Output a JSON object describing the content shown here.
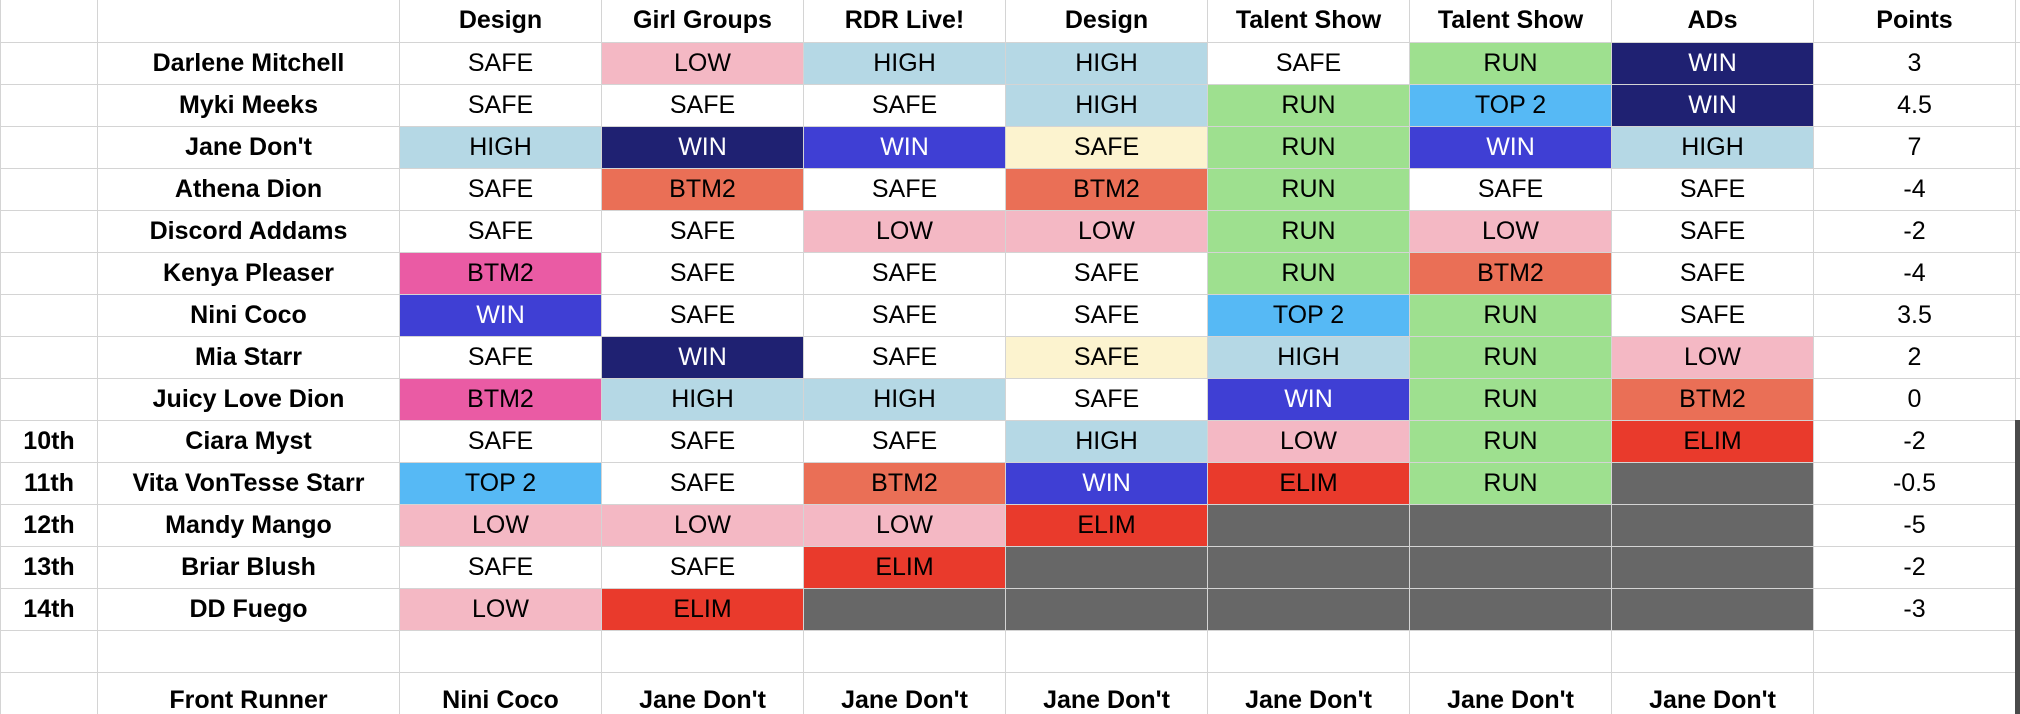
{
  "columns": {
    "rank": "",
    "name": "",
    "episodes": [
      "Design",
      "Girl Groups",
      "RDR Live!",
      "Design",
      "Talent Show",
      "Talent Show",
      "ADs"
    ],
    "points": "Points"
  },
  "status_colors": {
    "SAFE": "#ffffff",
    "LOW": "#f4b8c4",
    "HIGH": "#b5d8e5",
    "WIN": "#3f3fd4",
    "WIN_DARK": "#1f2172",
    "RUN": "#9ee08f",
    "TOP 2": "#56b9f5",
    "BTM2": "#ea6f56",
    "BTM2_PINK": "#ea5ba4",
    "ELIM": "#e93a2c",
    "SAFE_CREAM": "#fcf3cf",
    "ELIMINATED_GREY": "#676767"
  },
  "queens": [
    {
      "rank": "",
      "name": "Darlene Mitchell",
      "points": "3",
      "results": [
        {
          "text": "SAFE",
          "bg": "#ffffff",
          "fg": "#000000"
        },
        {
          "text": "LOW",
          "bg": "#f4b8c4",
          "fg": "#000000"
        },
        {
          "text": "HIGH",
          "bg": "#b5d8e5",
          "fg": "#000000"
        },
        {
          "text": "HIGH",
          "bg": "#b5d8e5",
          "fg": "#000000"
        },
        {
          "text": "SAFE",
          "bg": "#ffffff",
          "fg": "#000000"
        },
        {
          "text": "RUN",
          "bg": "#9ee08f",
          "fg": "#000000"
        },
        {
          "text": "WIN",
          "bg": "#1f2172",
          "fg": "#ffffff"
        }
      ]
    },
    {
      "rank": "",
      "name": "Myki Meeks",
      "points": "4.5",
      "results": [
        {
          "text": "SAFE",
          "bg": "#ffffff",
          "fg": "#000000"
        },
        {
          "text": "SAFE",
          "bg": "#ffffff",
          "fg": "#000000"
        },
        {
          "text": "SAFE",
          "bg": "#ffffff",
          "fg": "#000000"
        },
        {
          "text": "HIGH",
          "bg": "#b5d8e5",
          "fg": "#000000"
        },
        {
          "text": "RUN",
          "bg": "#9ee08f",
          "fg": "#000000"
        },
        {
          "text": "TOP 2",
          "bg": "#56b9f5",
          "fg": "#000000"
        },
        {
          "text": "WIN",
          "bg": "#1f2172",
          "fg": "#ffffff"
        }
      ]
    },
    {
      "rank": "",
      "name": "Jane Don't",
      "points": "7",
      "results": [
        {
          "text": "HIGH",
          "bg": "#b5d8e5",
          "fg": "#000000"
        },
        {
          "text": "WIN",
          "bg": "#1f2172",
          "fg": "#ffffff"
        },
        {
          "text": "WIN",
          "bg": "#3f3fd4",
          "fg": "#ffffff"
        },
        {
          "text": "SAFE",
          "bg": "#fcf3cf",
          "fg": "#000000"
        },
        {
          "text": "RUN",
          "bg": "#9ee08f",
          "fg": "#000000"
        },
        {
          "text": "WIN",
          "bg": "#3f3fd4",
          "fg": "#ffffff"
        },
        {
          "text": "HIGH",
          "bg": "#b5d8e5",
          "fg": "#000000"
        }
      ]
    },
    {
      "rank": "",
      "name": "Athena Dion",
      "points": "-4",
      "results": [
        {
          "text": "SAFE",
          "bg": "#ffffff",
          "fg": "#000000"
        },
        {
          "text": "BTM2",
          "bg": "#ea6f56",
          "fg": "#000000"
        },
        {
          "text": "SAFE",
          "bg": "#ffffff",
          "fg": "#000000"
        },
        {
          "text": "BTM2",
          "bg": "#ea6f56",
          "fg": "#000000"
        },
        {
          "text": "RUN",
          "bg": "#9ee08f",
          "fg": "#000000"
        },
        {
          "text": "SAFE",
          "bg": "#ffffff",
          "fg": "#000000"
        },
        {
          "text": "SAFE",
          "bg": "#ffffff",
          "fg": "#000000"
        }
      ]
    },
    {
      "rank": "",
      "name": "Discord Addams",
      "points": "-2",
      "results": [
        {
          "text": "SAFE",
          "bg": "#ffffff",
          "fg": "#000000"
        },
        {
          "text": "SAFE",
          "bg": "#ffffff",
          "fg": "#000000"
        },
        {
          "text": "LOW",
          "bg": "#f4b8c4",
          "fg": "#000000"
        },
        {
          "text": "LOW",
          "bg": "#f4b8c4",
          "fg": "#000000"
        },
        {
          "text": "RUN",
          "bg": "#9ee08f",
          "fg": "#000000"
        },
        {
          "text": "LOW",
          "bg": "#f4b8c4",
          "fg": "#000000"
        },
        {
          "text": "SAFE",
          "bg": "#ffffff",
          "fg": "#000000"
        }
      ]
    },
    {
      "rank": "",
      "name": "Kenya Pleaser",
      "points": "-4",
      "results": [
        {
          "text": "BTM2",
          "bg": "#ea5ba4",
          "fg": "#000000"
        },
        {
          "text": "SAFE",
          "bg": "#ffffff",
          "fg": "#000000"
        },
        {
          "text": "SAFE",
          "bg": "#ffffff",
          "fg": "#000000"
        },
        {
          "text": "SAFE",
          "bg": "#ffffff",
          "fg": "#000000"
        },
        {
          "text": "RUN",
          "bg": "#9ee08f",
          "fg": "#000000"
        },
        {
          "text": "BTM2",
          "bg": "#ea6f56",
          "fg": "#000000"
        },
        {
          "text": "SAFE",
          "bg": "#ffffff",
          "fg": "#000000"
        }
      ]
    },
    {
      "rank": "",
      "name": "Nini Coco",
      "points": "3.5",
      "results": [
        {
          "text": "WIN",
          "bg": "#3f3fd4",
          "fg": "#ffffff"
        },
        {
          "text": "SAFE",
          "bg": "#ffffff",
          "fg": "#000000"
        },
        {
          "text": "SAFE",
          "bg": "#ffffff",
          "fg": "#000000"
        },
        {
          "text": "SAFE",
          "bg": "#ffffff",
          "fg": "#000000"
        },
        {
          "text": "TOP 2",
          "bg": "#56b9f5",
          "fg": "#000000"
        },
        {
          "text": "RUN",
          "bg": "#9ee08f",
          "fg": "#000000"
        },
        {
          "text": "SAFE",
          "bg": "#ffffff",
          "fg": "#000000"
        }
      ]
    },
    {
      "rank": "",
      "name": "Mia Starr",
      "points": "2",
      "results": [
        {
          "text": "SAFE",
          "bg": "#ffffff",
          "fg": "#000000"
        },
        {
          "text": "WIN",
          "bg": "#1f2172",
          "fg": "#ffffff"
        },
        {
          "text": "SAFE",
          "bg": "#ffffff",
          "fg": "#000000"
        },
        {
          "text": "SAFE",
          "bg": "#fcf3cf",
          "fg": "#000000"
        },
        {
          "text": "HIGH",
          "bg": "#b5d8e5",
          "fg": "#000000"
        },
        {
          "text": "RUN",
          "bg": "#9ee08f",
          "fg": "#000000"
        },
        {
          "text": "LOW",
          "bg": "#f4b8c4",
          "fg": "#000000"
        }
      ]
    },
    {
      "rank": "",
      "name": "Juicy Love Dion",
      "points": "0",
      "results": [
        {
          "text": "BTM2",
          "bg": "#ea5ba4",
          "fg": "#000000"
        },
        {
          "text": "HIGH",
          "bg": "#b5d8e5",
          "fg": "#000000"
        },
        {
          "text": "HIGH",
          "bg": "#b5d8e5",
          "fg": "#000000"
        },
        {
          "text": "SAFE",
          "bg": "#ffffff",
          "fg": "#000000"
        },
        {
          "text": "WIN",
          "bg": "#3f3fd4",
          "fg": "#ffffff"
        },
        {
          "text": "RUN",
          "bg": "#9ee08f",
          "fg": "#000000"
        },
        {
          "text": "BTM2",
          "bg": "#ea6f56",
          "fg": "#000000"
        }
      ]
    },
    {
      "rank": "10th",
      "name": "Ciara Myst",
      "points": "-2",
      "results": [
        {
          "text": "SAFE",
          "bg": "#ffffff",
          "fg": "#000000"
        },
        {
          "text": "SAFE",
          "bg": "#ffffff",
          "fg": "#000000"
        },
        {
          "text": "SAFE",
          "bg": "#ffffff",
          "fg": "#000000"
        },
        {
          "text": "HIGH",
          "bg": "#b5d8e5",
          "fg": "#000000"
        },
        {
          "text": "LOW",
          "bg": "#f4b8c4",
          "fg": "#000000"
        },
        {
          "text": "RUN",
          "bg": "#9ee08f",
          "fg": "#000000"
        },
        {
          "text": "ELIM",
          "bg": "#e93a2c",
          "fg": "#000000"
        }
      ]
    },
    {
      "rank": "11th",
      "name": "Vita VonTesse Starr",
      "points": "-0.5",
      "results": [
        {
          "text": "TOP 2",
          "bg": "#56b9f5",
          "fg": "#000000"
        },
        {
          "text": "SAFE",
          "bg": "#ffffff",
          "fg": "#000000"
        },
        {
          "text": "BTM2",
          "bg": "#ea6f56",
          "fg": "#000000"
        },
        {
          "text": "WIN",
          "bg": "#3f3fd4",
          "fg": "#ffffff"
        },
        {
          "text": "ELIM",
          "bg": "#e93a2c",
          "fg": "#000000"
        },
        {
          "text": "RUN",
          "bg": "#9ee08f",
          "fg": "#000000"
        },
        {
          "text": "",
          "bg": "#676767",
          "fg": "#000000"
        }
      ]
    },
    {
      "rank": "12th",
      "name": "Mandy Mango",
      "points": "-5",
      "results": [
        {
          "text": "LOW",
          "bg": "#f4b8c4",
          "fg": "#000000"
        },
        {
          "text": "LOW",
          "bg": "#f4b8c4",
          "fg": "#000000"
        },
        {
          "text": "LOW",
          "bg": "#f4b8c4",
          "fg": "#000000"
        },
        {
          "text": "ELIM",
          "bg": "#e93a2c",
          "fg": "#000000"
        },
        {
          "text": "",
          "bg": "#676767",
          "fg": "#000000"
        },
        {
          "text": "",
          "bg": "#676767",
          "fg": "#000000"
        },
        {
          "text": "",
          "bg": "#676767",
          "fg": "#000000"
        }
      ]
    },
    {
      "rank": "13th",
      "name": "Briar Blush",
      "points": "-2",
      "results": [
        {
          "text": "SAFE",
          "bg": "#ffffff",
          "fg": "#000000"
        },
        {
          "text": "SAFE",
          "bg": "#ffffff",
          "fg": "#000000"
        },
        {
          "text": "ELIM",
          "bg": "#e93a2c",
          "fg": "#000000"
        },
        {
          "text": "",
          "bg": "#676767",
          "fg": "#000000"
        },
        {
          "text": "",
          "bg": "#676767",
          "fg": "#000000"
        },
        {
          "text": "",
          "bg": "#676767",
          "fg": "#000000"
        },
        {
          "text": "",
          "bg": "#676767",
          "fg": "#000000"
        }
      ]
    },
    {
      "rank": "14th",
      "name": "DD Fuego",
      "points": "-3",
      "results": [
        {
          "text": "LOW",
          "bg": "#f4b8c4",
          "fg": "#000000"
        },
        {
          "text": "ELIM",
          "bg": "#e93a2c",
          "fg": "#000000"
        },
        {
          "text": "",
          "bg": "#676767",
          "fg": "#000000"
        },
        {
          "text": "",
          "bg": "#676767",
          "fg": "#000000"
        },
        {
          "text": "",
          "bg": "#676767",
          "fg": "#000000"
        },
        {
          "text": "",
          "bg": "#676767",
          "fg": "#000000"
        },
        {
          "text": "",
          "bg": "#676767",
          "fg": "#000000"
        }
      ]
    }
  ],
  "front_runner": {
    "label": "Front Runner",
    "values": [
      "Nini Coco",
      "Jane Don't",
      "Jane Don't",
      "Jane Don't",
      "Jane Don't",
      "Jane Don't",
      "Jane Don't"
    ]
  }
}
